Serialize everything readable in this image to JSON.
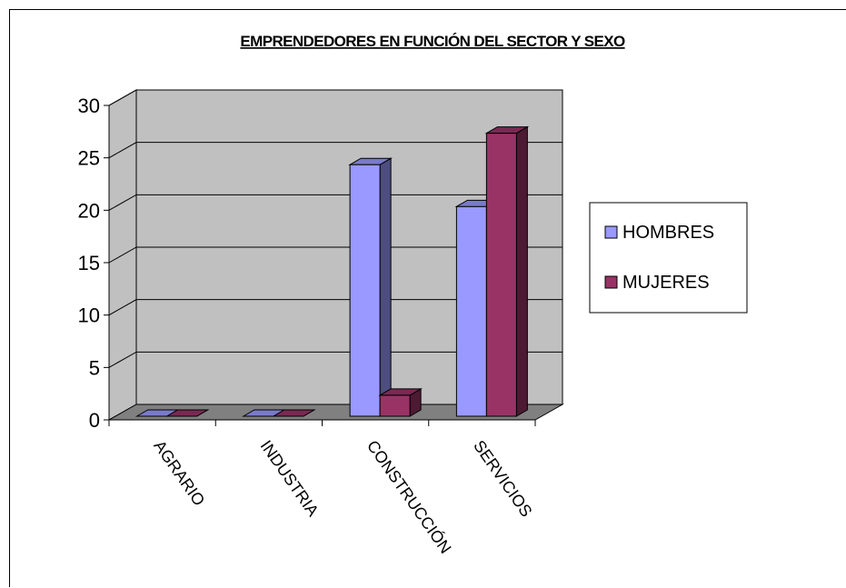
{
  "chart_data": {
    "type": "bar",
    "title": "EMPRENDEDORES EN FUNCIÓN DEL SECTOR Y SEXO",
    "xlabel": "",
    "ylabel": "",
    "categories": [
      "AGRARIO",
      "INDUSTRIA",
      "CONSTRUCCIÓN",
      "SERVICIOS"
    ],
    "series": [
      {
        "name": "HOMBRES",
        "values": [
          0,
          0,
          24,
          20
        ],
        "color": "#9999ff"
      },
      {
        "name": "MUJERES",
        "values": [
          0,
          0,
          2,
          27
        ],
        "color": "#993366"
      }
    ],
    "ylim": [
      0,
      30
    ],
    "yticks": [
      0,
      5,
      10,
      15,
      20,
      25,
      30
    ],
    "grid": true,
    "legend": "right",
    "wall_color": "#c0c0c0",
    "floor_color": "#808080"
  }
}
